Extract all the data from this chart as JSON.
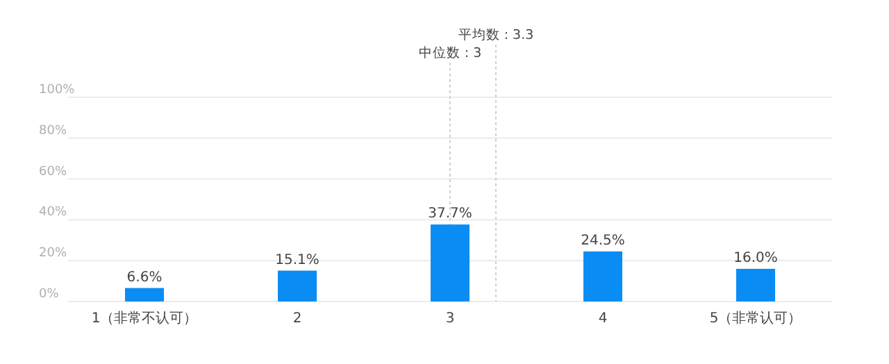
{
  "chart_data": {
    "type": "bar",
    "x": [
      1,
      2,
      3,
      4,
      5
    ],
    "values": [
      6.6,
      15.1,
      37.7,
      24.5,
      16.0
    ],
    "value_labels": [
      "6.6%",
      "15.1%",
      "37.7%",
      "24.5%",
      "16.0%"
    ],
    "color": "#0a8cf5",
    "xlim": [
      0.5,
      5.5
    ],
    "xticks": [
      {
        "value": 1,
        "label": "1（非常不认可）"
      },
      2,
      3,
      4,
      {
        "value": 5,
        "label": "5（非常认可）"
      }
    ],
    "ylim": [
      0,
      100
    ],
    "yticks": [
      {
        "value": 0,
        "label": "0%"
      },
      {
        "value": 20,
        "label": "20%"
      },
      {
        "value": 40,
        "label": "40%"
      },
      {
        "value": 60,
        "label": "60%"
      },
      {
        "value": 80,
        "label": "80%"
      },
      {
        "value": 100,
        "label": "100%"
      }
    ],
    "grid": "y",
    "ref_lines": [
      {
        "axis": "x",
        "value": 3,
        "label": "中位数 : 3",
        "line_style": "dotted"
      },
      {
        "axis": "x",
        "value": 3.3,
        "label": "平均数 : 3.3",
        "line_style": "dotted"
      }
    ]
  }
}
